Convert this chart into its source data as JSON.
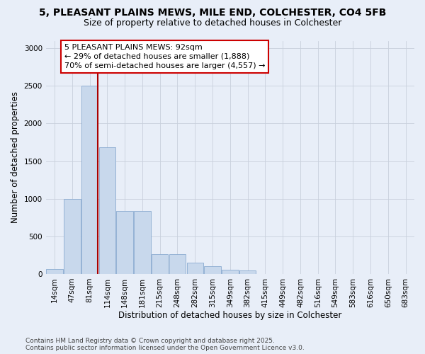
{
  "title_line1": "5, PLEASANT PLAINS MEWS, MILE END, COLCHESTER, CO4 5FB",
  "title_line2": "Size of property relative to detached houses in Colchester",
  "xlabel": "Distribution of detached houses by size in Colchester",
  "ylabel": "Number of detached properties",
  "bar_color": "#c8d8ec",
  "bar_edge_color": "#8aaad0",
  "categories": [
    "14sqm",
    "47sqm",
    "81sqm",
    "114sqm",
    "148sqm",
    "181sqm",
    "215sqm",
    "248sqm",
    "282sqm",
    "315sqm",
    "349sqm",
    "382sqm",
    "415sqm",
    "449sqm",
    "482sqm",
    "516sqm",
    "549sqm",
    "583sqm",
    "616sqm",
    "650sqm",
    "683sqm"
  ],
  "values": [
    68,
    1000,
    2500,
    1680,
    840,
    840,
    265,
    265,
    150,
    100,
    60,
    50,
    0,
    0,
    0,
    0,
    0,
    0,
    0,
    0,
    0
  ],
  "ylim": [
    0,
    3100
  ],
  "yticks": [
    0,
    500,
    1000,
    1500,
    2000,
    2500,
    3000
  ],
  "vline_color": "#aa0000",
  "annotation_text": "5 PLEASANT PLAINS MEWS: 92sqm\n← 29% of detached houses are smaller (1,888)\n70% of semi-detached houses are larger (4,557) →",
  "footer_line1": "Contains HM Land Registry data © Crown copyright and database right 2025.",
  "footer_line2": "Contains public sector information licensed under the Open Government Licence v3.0.",
  "bg_color": "#e8eef8",
  "title_fontsize": 10,
  "subtitle_fontsize": 9,
  "axis_label_fontsize": 8.5,
  "tick_fontsize": 7.5,
  "annotation_fontsize": 8,
  "footer_fontsize": 6.5
}
